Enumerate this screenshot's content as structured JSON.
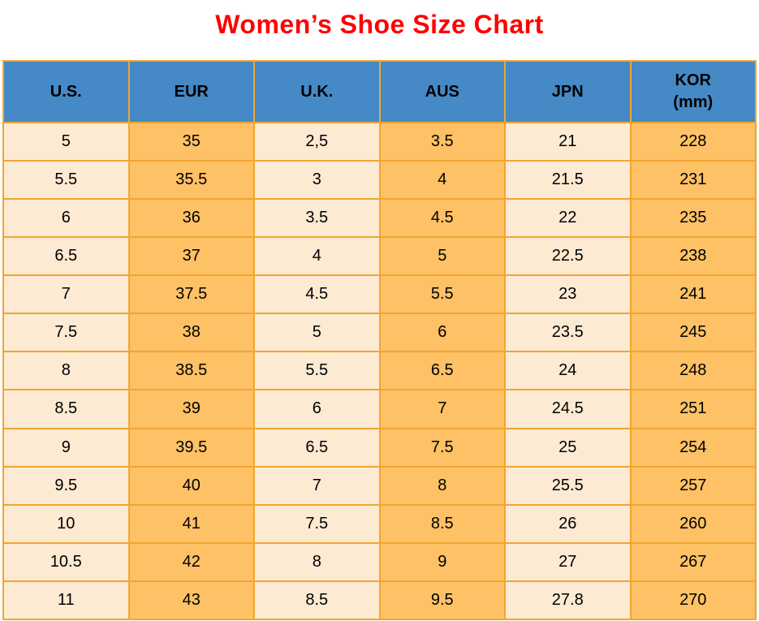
{
  "title": "Women’s Shoe Size Chart",
  "colors": {
    "title_red": "#FF0000",
    "header_blue": "#4589C6",
    "column_cream": "#FDEAD3",
    "column_orange": "#FEC165",
    "grid_border": "#F2A52F",
    "cell_text": "#000000"
  },
  "chart_data": {
    "type": "table",
    "title": "Women’s Shoe Size Chart",
    "columns": [
      "U.S.",
      "EUR",
      "U.K.",
      "AUS",
      "JPN",
      "KOR (mm)"
    ],
    "header_lines": {
      "kor_label": "KOR",
      "kor_unit": "(mm)"
    },
    "rows": [
      [
        "5",
        "35",
        "2,5",
        "3.5",
        "21",
        "228"
      ],
      [
        "5.5",
        "35.5",
        "3",
        "4",
        "21.5",
        "231"
      ],
      [
        "6",
        "36",
        "3.5",
        "4.5",
        "22",
        "235"
      ],
      [
        "6.5",
        "37",
        "4",
        "5",
        "22.5",
        "238"
      ],
      [
        "7",
        "37.5",
        "4.5",
        "5.5",
        "23",
        "241"
      ],
      [
        "7.5",
        "38",
        "5",
        "6",
        "23.5",
        "245"
      ],
      [
        "8",
        "38.5",
        "5.5",
        "6.5",
        "24",
        "248"
      ],
      [
        "8.5",
        "39",
        "6",
        "7",
        "24.5",
        "251"
      ],
      [
        "9",
        "39.5",
        "6.5",
        "7.5",
        "25",
        "254"
      ],
      [
        "9.5",
        "40",
        "7",
        "8",
        "25.5",
        "257"
      ],
      [
        "10",
        "41",
        "7.5",
        "8.5",
        "26",
        "260"
      ],
      [
        "10.5",
        "42",
        "8",
        "9",
        "27",
        "267"
      ],
      [
        "11",
        "43",
        "8.5",
        "9.5",
        "27.8",
        "270"
      ]
    ]
  }
}
